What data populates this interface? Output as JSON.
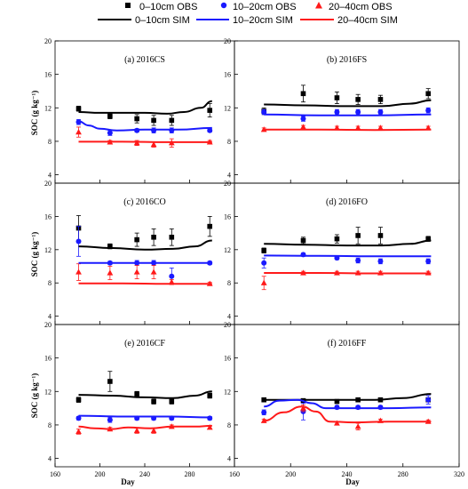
{
  "legend": [
    {
      "label": "0–10cm OBS",
      "marker": "square",
      "color": "#000000"
    },
    {
      "label": "10–20cm OBS",
      "marker": "circle",
      "color": "#1a1aff"
    },
    {
      "label": "20–40cm OBS",
      "marker": "triangle",
      "color": "#ff1a1a"
    },
    {
      "label": "0–10cm SIM",
      "marker": "line",
      "color": "#000000"
    },
    {
      "label": "10–20cm SIM",
      "marker": "line",
      "color": "#1a1aff"
    },
    {
      "label": "20–40cm SIM",
      "marker": "line",
      "color": "#ff1a1a"
    }
  ],
  "axes": {
    "xlabel": "Day",
    "ylabel": "SOC (g kg⁻¹)",
    "xlim": [
      160,
      320
    ],
    "ylim": [
      3,
      20
    ],
    "xticks": [
      160,
      200,
      240,
      280,
      320
    ],
    "xtick_labels": [
      "160",
      "200",
      "240",
      "280",
      "320"
    ],
    "yticks": [
      4,
      8,
      12,
      16,
      20
    ],
    "ytick_labels": [
      "4",
      "8",
      "12",
      "16",
      "20"
    ]
  },
  "chart_data": [
    {
      "type": "scatter",
      "title": "(a) 2016CS",
      "series": [
        {
          "name": "0–10cm OBS",
          "color": "#000000",
          "x": [
            181,
            209,
            233,
            248,
            264,
            298
          ],
          "y": [
            11.9,
            11.0,
            10.7,
            10.5,
            10.5,
            11.7
          ],
          "err": [
            0.3,
            0.3,
            0.5,
            0.6,
            0.6,
            0.8
          ]
        },
        {
          "name": "10–20cm OBS",
          "color": "#1a1aff",
          "x": [
            181,
            209,
            233,
            248,
            264,
            298
          ],
          "y": [
            10.3,
            9.0,
            9.3,
            9.3,
            9.3,
            9.3
          ],
          "err": [
            0.3,
            0.3,
            0.2,
            0.3,
            0.3,
            0.2
          ]
        },
        {
          "name": "20–40cm OBS",
          "color": "#ff1a1a",
          "x": [
            181,
            209,
            233,
            248,
            264,
            298
          ],
          "y": [
            9.1,
            7.9,
            7.8,
            7.6,
            7.8,
            7.9
          ],
          "err": [
            0.6,
            0.2,
            0.3,
            0.3,
            0.5,
            0.2
          ]
        },
        {
          "name": "0–10cm SIM",
          "color": "#000000",
          "x": [
            181,
            200,
            220,
            240,
            260,
            275,
            290,
            300
          ],
          "y": [
            11.5,
            11.4,
            11.4,
            11.4,
            11.3,
            11.5,
            12.0,
            12.8
          ]
        },
        {
          "name": "10–20cm SIM",
          "color": "#1a1aff",
          "x": [
            181,
            190,
            200,
            215,
            240,
            270,
            300
          ],
          "y": [
            10.4,
            9.9,
            9.5,
            9.3,
            9.4,
            9.4,
            9.6
          ]
        },
        {
          "name": "20–40cm SIM",
          "color": "#ff1a1a",
          "x": [
            181,
            220,
            260,
            300
          ],
          "y": [
            7.95,
            7.95,
            7.9,
            7.9
          ]
        }
      ]
    },
    {
      "type": "scatter",
      "title": "(b) 2016FS",
      "series": [
        {
          "name": "0–10cm OBS",
          "color": "#000000",
          "x": [
            181,
            209,
            233,
            248,
            264,
            298
          ],
          "y": [
            11.6,
            13.7,
            13.2,
            13.0,
            13.0,
            13.7
          ],
          "err": [
            0.4,
            1.0,
            0.7,
            0.6,
            0.5,
            0.6
          ]
        },
        {
          "name": "10–20cm OBS",
          "color": "#1a1aff",
          "x": [
            181,
            209,
            233,
            248,
            264,
            298
          ],
          "y": [
            11.5,
            10.7,
            11.5,
            11.5,
            11.5,
            11.7
          ],
          "err": [
            0.3,
            0.3,
            0.3,
            0.3,
            0.3,
            0.3
          ]
        },
        {
          "name": "20–40cm OBS",
          "color": "#ff1a1a",
          "x": [
            181,
            209,
            233,
            248,
            264,
            298
          ],
          "y": [
            9.4,
            9.7,
            9.6,
            9.6,
            9.6,
            9.6
          ],
          "err": [
            0.2,
            0.2,
            0.2,
            0.2,
            0.2,
            0.2
          ]
        },
        {
          "name": "0–10cm SIM",
          "color": "#000000",
          "x": [
            181,
            210,
            240,
            265,
            285,
            300
          ],
          "y": [
            12.4,
            12.3,
            12.2,
            12.2,
            12.5,
            12.9
          ]
        },
        {
          "name": "10–20cm SIM",
          "color": "#1a1aff",
          "x": [
            181,
            220,
            260,
            300
          ],
          "y": [
            11.2,
            11.1,
            11.1,
            11.2
          ]
        },
        {
          "name": "20–40cm SIM",
          "color": "#ff1a1a",
          "x": [
            181,
            220,
            260,
            300
          ],
          "y": [
            9.4,
            9.4,
            9.35,
            9.4
          ]
        }
      ]
    },
    {
      "type": "scatter",
      "title": "(c) 2016CO",
      "series": [
        {
          "name": "0–10cm OBS",
          "color": "#000000",
          "x": [
            181,
            209,
            233,
            248,
            264,
            298
          ],
          "y": [
            14.6,
            12.4,
            13.2,
            13.5,
            13.5,
            14.8
          ],
          "err": [
            1.5,
            0.3,
            0.8,
            1.0,
            1.0,
            1.2
          ]
        },
        {
          "name": "10–20cm OBS",
          "color": "#1a1aff",
          "x": [
            181,
            209,
            233,
            248,
            264,
            298
          ],
          "y": [
            13.0,
            10.4,
            10.4,
            10.4,
            8.8,
            10.4
          ],
          "err": [
            1.8,
            0.2,
            0.3,
            0.3,
            1.0,
            0.2
          ]
        },
        {
          "name": "20–40cm OBS",
          "color": "#ff1a1a",
          "x": [
            181,
            209,
            233,
            248,
            264,
            298
          ],
          "y": [
            9.3,
            9.2,
            9.3,
            9.3,
            8.1,
            7.9
          ],
          "err": [
            1.0,
            0.8,
            0.8,
            0.8,
            0.3,
            0.2
          ]
        },
        {
          "name": "0–10cm SIM",
          "color": "#000000",
          "x": [
            181,
            210,
            240,
            265,
            285,
            300
          ],
          "y": [
            12.4,
            12.2,
            12.0,
            12.1,
            12.4,
            13.1
          ]
        },
        {
          "name": "10–20cm SIM",
          "color": "#1a1aff",
          "x": [
            181,
            220,
            260,
            300
          ],
          "y": [
            10.4,
            10.4,
            10.4,
            10.4
          ]
        },
        {
          "name": "20–40cm SIM",
          "color": "#ff1a1a",
          "x": [
            181,
            220,
            260,
            300
          ],
          "y": [
            7.95,
            7.95,
            7.9,
            7.9
          ]
        }
      ]
    },
    {
      "type": "scatter",
      "title": "(d) 2016FO",
      "series": [
        {
          "name": "0–10cm OBS",
          "color": "#000000",
          "x": [
            181,
            209,
            233,
            248,
            264,
            298
          ],
          "y": [
            11.9,
            13.1,
            13.3,
            13.7,
            13.7,
            13.3
          ],
          "err": [
            0.3,
            0.4,
            0.5,
            1.0,
            1.0,
            0.3
          ]
        },
        {
          "name": "10–20cm OBS",
          "color": "#1a1aff",
          "x": [
            181,
            209,
            233,
            248,
            264,
            298
          ],
          "y": [
            10.4,
            11.4,
            11.0,
            10.7,
            10.6,
            10.6
          ],
          "err": [
            0.6,
            0.2,
            0.2,
            0.3,
            0.3,
            0.3
          ]
        },
        {
          "name": "20–40cm OBS",
          "color": "#ff1a1a",
          "x": [
            181,
            209,
            233,
            248,
            264,
            298
          ],
          "y": [
            8.0,
            9.2,
            9.2,
            9.2,
            9.2,
            9.2
          ],
          "err": [
            0.8,
            0.2,
            0.2,
            0.2,
            0.2,
            0.2
          ]
        },
        {
          "name": "0–10cm SIM",
          "color": "#000000",
          "x": [
            181,
            210,
            240,
            265,
            285,
            300
          ],
          "y": [
            12.7,
            12.6,
            12.5,
            12.5,
            12.7,
            13.1
          ]
        },
        {
          "name": "10–20cm SIM",
          "color": "#1a1aff",
          "x": [
            181,
            220,
            260,
            300
          ],
          "y": [
            11.3,
            11.25,
            11.2,
            11.2
          ]
        },
        {
          "name": "20–40cm SIM",
          "color": "#ff1a1a",
          "x": [
            181,
            220,
            260,
            300
          ],
          "y": [
            9.2,
            9.2,
            9.15,
            9.15
          ]
        }
      ]
    },
    {
      "type": "scatter",
      "title": "(e) 2016CF",
      "series": [
        {
          "name": "0–10cm OBS",
          "color": "#000000",
          "x": [
            181,
            209,
            233,
            248,
            264,
            298
          ],
          "y": [
            11.0,
            13.2,
            11.7,
            10.8,
            10.8,
            11.5
          ],
          "err": [
            0.3,
            1.2,
            0.3,
            0.3,
            0.3,
            0.3
          ]
        },
        {
          "name": "10–20cm OBS",
          "color": "#1a1aff",
          "x": [
            181,
            209,
            233,
            248,
            264,
            298
          ],
          "y": [
            8.8,
            8.6,
            8.8,
            8.8,
            8.8,
            8.8
          ],
          "err": [
            0.2,
            0.3,
            0.2,
            0.2,
            0.2,
            0.2
          ]
        },
        {
          "name": "20–40cm OBS",
          "color": "#ff1a1a",
          "x": [
            181,
            209,
            233,
            248,
            264,
            298
          ],
          "y": [
            7.2,
            7.5,
            7.3,
            7.3,
            7.8,
            7.7
          ],
          "err": [
            0.3,
            0.2,
            0.3,
            0.3,
            0.2,
            0.2
          ]
        },
        {
          "name": "0–10cm SIM",
          "color": "#000000",
          "x": [
            181,
            210,
            240,
            265,
            285,
            300
          ],
          "y": [
            11.6,
            11.5,
            11.3,
            11.2,
            11.5,
            12.0
          ]
        },
        {
          "name": "10–20cm SIM",
          "color": "#1a1aff",
          "x": [
            181,
            220,
            260,
            300
          ],
          "y": [
            9.1,
            9.0,
            9.0,
            8.9
          ]
        },
        {
          "name": "20–40cm SIM",
          "color": "#ff1a1a",
          "x": [
            181,
            195,
            210,
            225,
            245,
            265,
            285,
            300
          ],
          "y": [
            7.8,
            7.6,
            7.5,
            7.7,
            7.6,
            7.8,
            7.8,
            7.9
          ]
        }
      ]
    },
    {
      "type": "scatter",
      "title": "(f) 2016FF",
      "series": [
        {
          "name": "0–10cm OBS",
          "color": "#000000",
          "x": [
            181,
            209,
            233,
            248,
            264,
            298
          ],
          "y": [
            11.0,
            10.9,
            10.8,
            11.0,
            11.0,
            11.0
          ],
          "err": [
            0.2,
            0.2,
            0.2,
            0.2,
            0.2,
            0.2
          ]
        },
        {
          "name": "10–20cm OBS",
          "color": "#1a1aff",
          "x": [
            181,
            209,
            233,
            248,
            264,
            298
          ],
          "y": [
            9.5,
            9.6,
            10.1,
            10.1,
            10.1,
            11.0
          ],
          "err": [
            0.3,
            1.0,
            0.2,
            0.2,
            0.2,
            0.5
          ]
        },
        {
          "name": "20–40cm OBS",
          "color": "#ff1a1a",
          "x": [
            181,
            209,
            233,
            248,
            264,
            298
          ],
          "y": [
            8.5,
            10.0,
            8.2,
            7.8,
            8.5,
            8.4
          ],
          "err": [
            0.2,
            0.4,
            0.2,
            0.4,
            0.2,
            0.2
          ]
        },
        {
          "name": "0–10cm SIM",
          "color": "#000000",
          "x": [
            181,
            200,
            220,
            240,
            260,
            280,
            300
          ],
          "y": [
            11.0,
            11.0,
            11.0,
            11.0,
            11.0,
            11.2,
            11.7
          ]
        },
        {
          "name": "10–20cm SIM",
          "color": "#1a1aff",
          "x": [
            181,
            192,
            205,
            215,
            225,
            245,
            270,
            300
          ],
          "y": [
            10.2,
            10.9,
            11.0,
            10.6,
            10.0,
            10.0,
            10.0,
            10.1
          ]
        },
        {
          "name": "20–40cm SIM",
          "color": "#ff1a1a",
          "x": [
            181,
            195,
            208,
            218,
            228,
            245,
            270,
            300
          ],
          "y": [
            8.5,
            9.5,
            10.2,
            9.6,
            8.4,
            8.3,
            8.4,
            8.4
          ]
        }
      ]
    }
  ]
}
